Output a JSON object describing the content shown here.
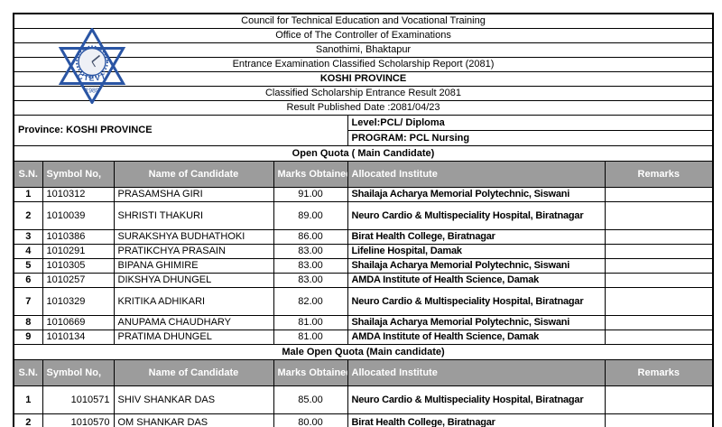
{
  "logo": {
    "acronym": "CTEVT",
    "year": "1989",
    "color": "#2a55a4"
  },
  "header_lines": [
    "Council for Technical Education and Vocational Training",
    "Office of The Controller of Examinations",
    "Sanothimi, Bhaktapur",
    "Entrance Examination Classified Scholarship Report (2081)",
    "KOSHI PROVINCE",
    "Classified Scholarship Entrance Result 2081",
    "Result Published Date :2081/04/23"
  ],
  "province_label": "Province: KOSHI PROVINCE",
  "level": "Level:PCL/ Diploma",
  "program": "PROGRAM: PCL Nursing",
  "columns": [
    "S.N.",
    "Symbol No,",
    "Name of Candidate",
    "Marks Obtained",
    "Allocated Institute",
    "Remarks"
  ],
  "colors": {
    "header_bg": "#9c9c9c",
    "header_text": "#ffffff",
    "border": "#000000",
    "logo_blue": "#2a55a4"
  },
  "sections": [
    {
      "title": "Open Quota ( Main Candidate)",
      "symbol_align": "left",
      "rows": [
        {
          "sn": "1",
          "symbol": "1010312",
          "name": "PRASAMSHA  GIRI",
          "marks": "91.00",
          "institute": "Shailaja Acharya Memorial Polytechnic, Siswani",
          "remarks": "",
          "tall": false
        },
        {
          "sn": "2",
          "symbol": "1010039",
          "name": "SHRISTI  THAKURI",
          "marks": "89.00",
          "institute": "Neuro Cardio & Multispeciality Hospital, Biratnagar",
          "remarks": "",
          "tall": true
        },
        {
          "sn": "3",
          "symbol": "1010386",
          "name": "SURAKSHYA  BUDHATHOKI",
          "marks": "86.00",
          "institute": "Birat Health College, Biratnagar",
          "remarks": "",
          "tall": false
        },
        {
          "sn": "4",
          "symbol": "1010291",
          "name": "PRATIKCHYA  PRASAIN",
          "marks": "83.00",
          "institute": "Lifeline Hospital, Damak",
          "remarks": "",
          "tall": false
        },
        {
          "sn": "5",
          "symbol": "1010305",
          "name": "BIPANA  GHIMIRE",
          "marks": "83.00",
          "institute": "Shailaja Acharya Memorial Polytechnic, Siswani",
          "remarks": "",
          "tall": false
        },
        {
          "sn": "6",
          "symbol": "1010257",
          "name": "DIKSHYA  DHUNGEL",
          "marks": "83.00",
          "institute": "AMDA Institute of Health Science, Damak",
          "remarks": "",
          "tall": false
        },
        {
          "sn": "7",
          "symbol": "1010329",
          "name": "KRITIKA  ADHIKARI",
          "marks": "82.00",
          "institute": "Neuro Cardio & Multispeciality Hospital, Biratnagar",
          "remarks": "",
          "tall": true
        },
        {
          "sn": "8",
          "symbol": "1010669",
          "name": "ANUPAMA  CHAUDHARY",
          "marks": "81.00",
          "institute": "Shailaja Acharya Memorial Polytechnic, Siswani",
          "remarks": "",
          "tall": false
        },
        {
          "sn": "9",
          "symbol": "1010134",
          "name": "PRATIMA  DHUNGEL",
          "marks": "81.00",
          "institute": "AMDA Institute of Health Science, Damak",
          "remarks": "",
          "tall": false
        }
      ]
    },
    {
      "title": "Male Open Quota (Main candidate)",
      "symbol_align": "right",
      "rows": [
        {
          "sn": "1",
          "symbol": "1010571",
          "name": "SHIV SHANKAR DAS",
          "marks": "85.00",
          "institute": "Neuro Cardio & Multispeciality Hospital, Biratnagar",
          "remarks": "",
          "tall": true
        },
        {
          "sn": "2",
          "symbol": "1010570",
          "name": "OM SHANKAR DAS",
          "marks": "80.00",
          "institute": "Birat Health College, Biratnagar",
          "remarks": "",
          "tall": false
        }
      ]
    }
  ]
}
